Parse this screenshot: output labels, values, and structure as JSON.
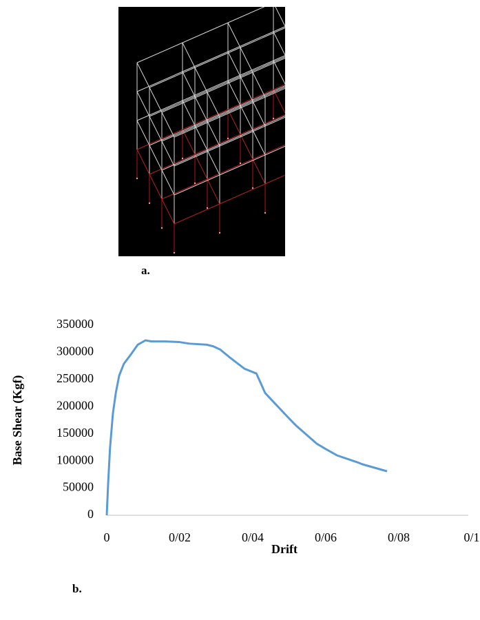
{
  "captions": {
    "a": "a.",
    "b": "b."
  },
  "chart_data": {
    "type": "line",
    "x_label": "Drift",
    "y_label": "Base Shear (Kgf)",
    "xlim": [
      0,
      0.1
    ],
    "ylim": [
      0,
      350000
    ],
    "xticks": [
      0,
      {
        "value": 0.02,
        "label": "0/02"
      },
      {
        "value": 0.04,
        "label": "0/04"
      },
      {
        "value": 0.06,
        "label": "0/06"
      },
      {
        "value": 0.08,
        "label": "0/08"
      },
      {
        "value": 0.1,
        "label": "0/1"
      }
    ],
    "yticks": [
      0,
      50000,
      100000,
      150000,
      200000,
      250000,
      300000,
      350000
    ],
    "grid": false,
    "series": [
      {
        "color": "#5b9bd5",
        "x": [
          0,
          0.0004,
          0.0009,
          0.0017,
          0.0025,
          0.0034,
          0.0047,
          0.0066,
          0.0085,
          0.0106,
          0.0123,
          0.016,
          0.0198,
          0.0226,
          0.0274,
          0.0292,
          0.0311,
          0.034,
          0.0377,
          0.041,
          0.0434,
          0.0462,
          0.05,
          0.0519,
          0.0575,
          0.06,
          0.0632,
          0.0689,
          0.07,
          0.0768
        ],
        "values": [
          0,
          61000,
          124000,
          188000,
          226000,
          257000,
          279000,
          296000,
          314000,
          322000,
          320000,
          320000,
          319000,
          316000,
          314000,
          311000,
          305000,
          289000,
          270000,
          261000,
          225000,
          205000,
          178000,
          165000,
          132000,
          122000,
          110000,
          97000,
          94000,
          81000
        ]
      }
    ]
  }
}
